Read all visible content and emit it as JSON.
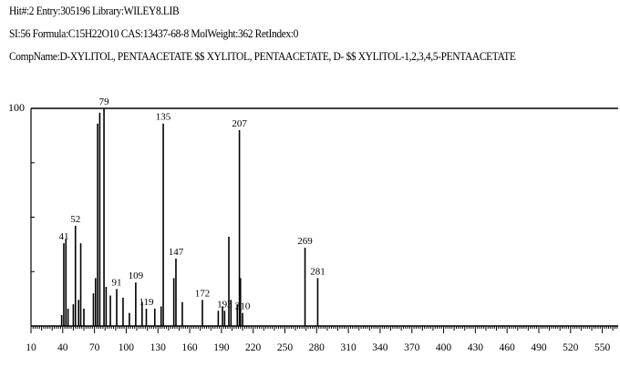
{
  "header": {
    "line1": "Hit#:2  Entry:305196  Library:WILEY8.LIB",
    "line2": "SI:56  Formula:C15H22O10  CAS:13437-68-8  MolWeight:362  RetIndex:0",
    "line3": "CompName:D-XYLITOL, PENTAACETATE $$ XYLITOL, PENTAACETATE, D- $$ XYLITOL-1,2,3,4,5-PENTAACETATE"
  },
  "chart_data": {
    "type": "bar",
    "title": "",
    "xlabel": "",
    "ylabel": "",
    "xlim": [
      10,
      565
    ],
    "ylim": [
      0,
      100
    ],
    "ytick_labels": [
      "100"
    ],
    "xtick_labels": [
      "10",
      "40",
      "70",
      "100",
      "130",
      "160",
      "190",
      "220",
      "250",
      "280",
      "310",
      "340",
      "370",
      "400",
      "430",
      "460",
      "490",
      "520",
      "550"
    ],
    "peaks": [
      {
        "mz": 39,
        "intensity": 5
      },
      {
        "mz": 41,
        "intensity": 38,
        "label": "41"
      },
      {
        "mz": 43,
        "intensity": 40
      },
      {
        "mz": 45,
        "intensity": 8
      },
      {
        "mz": 50,
        "intensity": 10
      },
      {
        "mz": 52,
        "intensity": 46,
        "label": "52"
      },
      {
        "mz": 55,
        "intensity": 12
      },
      {
        "mz": 57,
        "intensity": 38
      },
      {
        "mz": 60,
        "intensity": 8
      },
      {
        "mz": 69,
        "intensity": 15
      },
      {
        "mz": 71,
        "intensity": 22
      },
      {
        "mz": 73,
        "intensity": 93
      },
      {
        "mz": 75,
        "intensity": 98
      },
      {
        "mz": 79,
        "intensity": 100,
        "label": "79"
      },
      {
        "mz": 81,
        "intensity": 18
      },
      {
        "mz": 85,
        "intensity": 14
      },
      {
        "mz": 91,
        "intensity": 17,
        "label": "91"
      },
      {
        "mz": 97,
        "intensity": 13
      },
      {
        "mz": 103,
        "intensity": 6
      },
      {
        "mz": 109,
        "intensity": 20,
        "label": "109"
      },
      {
        "mz": 115,
        "intensity": 11
      },
      {
        "mz": 119,
        "intensity": 8,
        "label": "119"
      },
      {
        "mz": 127,
        "intensity": 8
      },
      {
        "mz": 133,
        "intensity": 9
      },
      {
        "mz": 135,
        "intensity": 93,
        "label": "135"
      },
      {
        "mz": 145,
        "intensity": 22
      },
      {
        "mz": 147,
        "intensity": 31,
        "label": "147"
      },
      {
        "mz": 153,
        "intensity": 11
      },
      {
        "mz": 172,
        "intensity": 12,
        "label": "172"
      },
      {
        "mz": 187,
        "intensity": 7
      },
      {
        "mz": 191,
        "intensity": 9
      },
      {
        "mz": 193,
        "intensity": 7,
        "label": "193"
      },
      {
        "mz": 197,
        "intensity": 41
      },
      {
        "mz": 199,
        "intensity": 12
      },
      {
        "mz": 205,
        "intensity": 10
      },
      {
        "mz": 207,
        "intensity": 90,
        "label": "207"
      },
      {
        "mz": 208,
        "intensity": 22
      },
      {
        "mz": 210,
        "intensity": 6,
        "label": "210"
      },
      {
        "mz": 269,
        "intensity": 36,
        "label": "269"
      },
      {
        "mz": 281,
        "intensity": 22,
        "label": "281"
      }
    ]
  }
}
